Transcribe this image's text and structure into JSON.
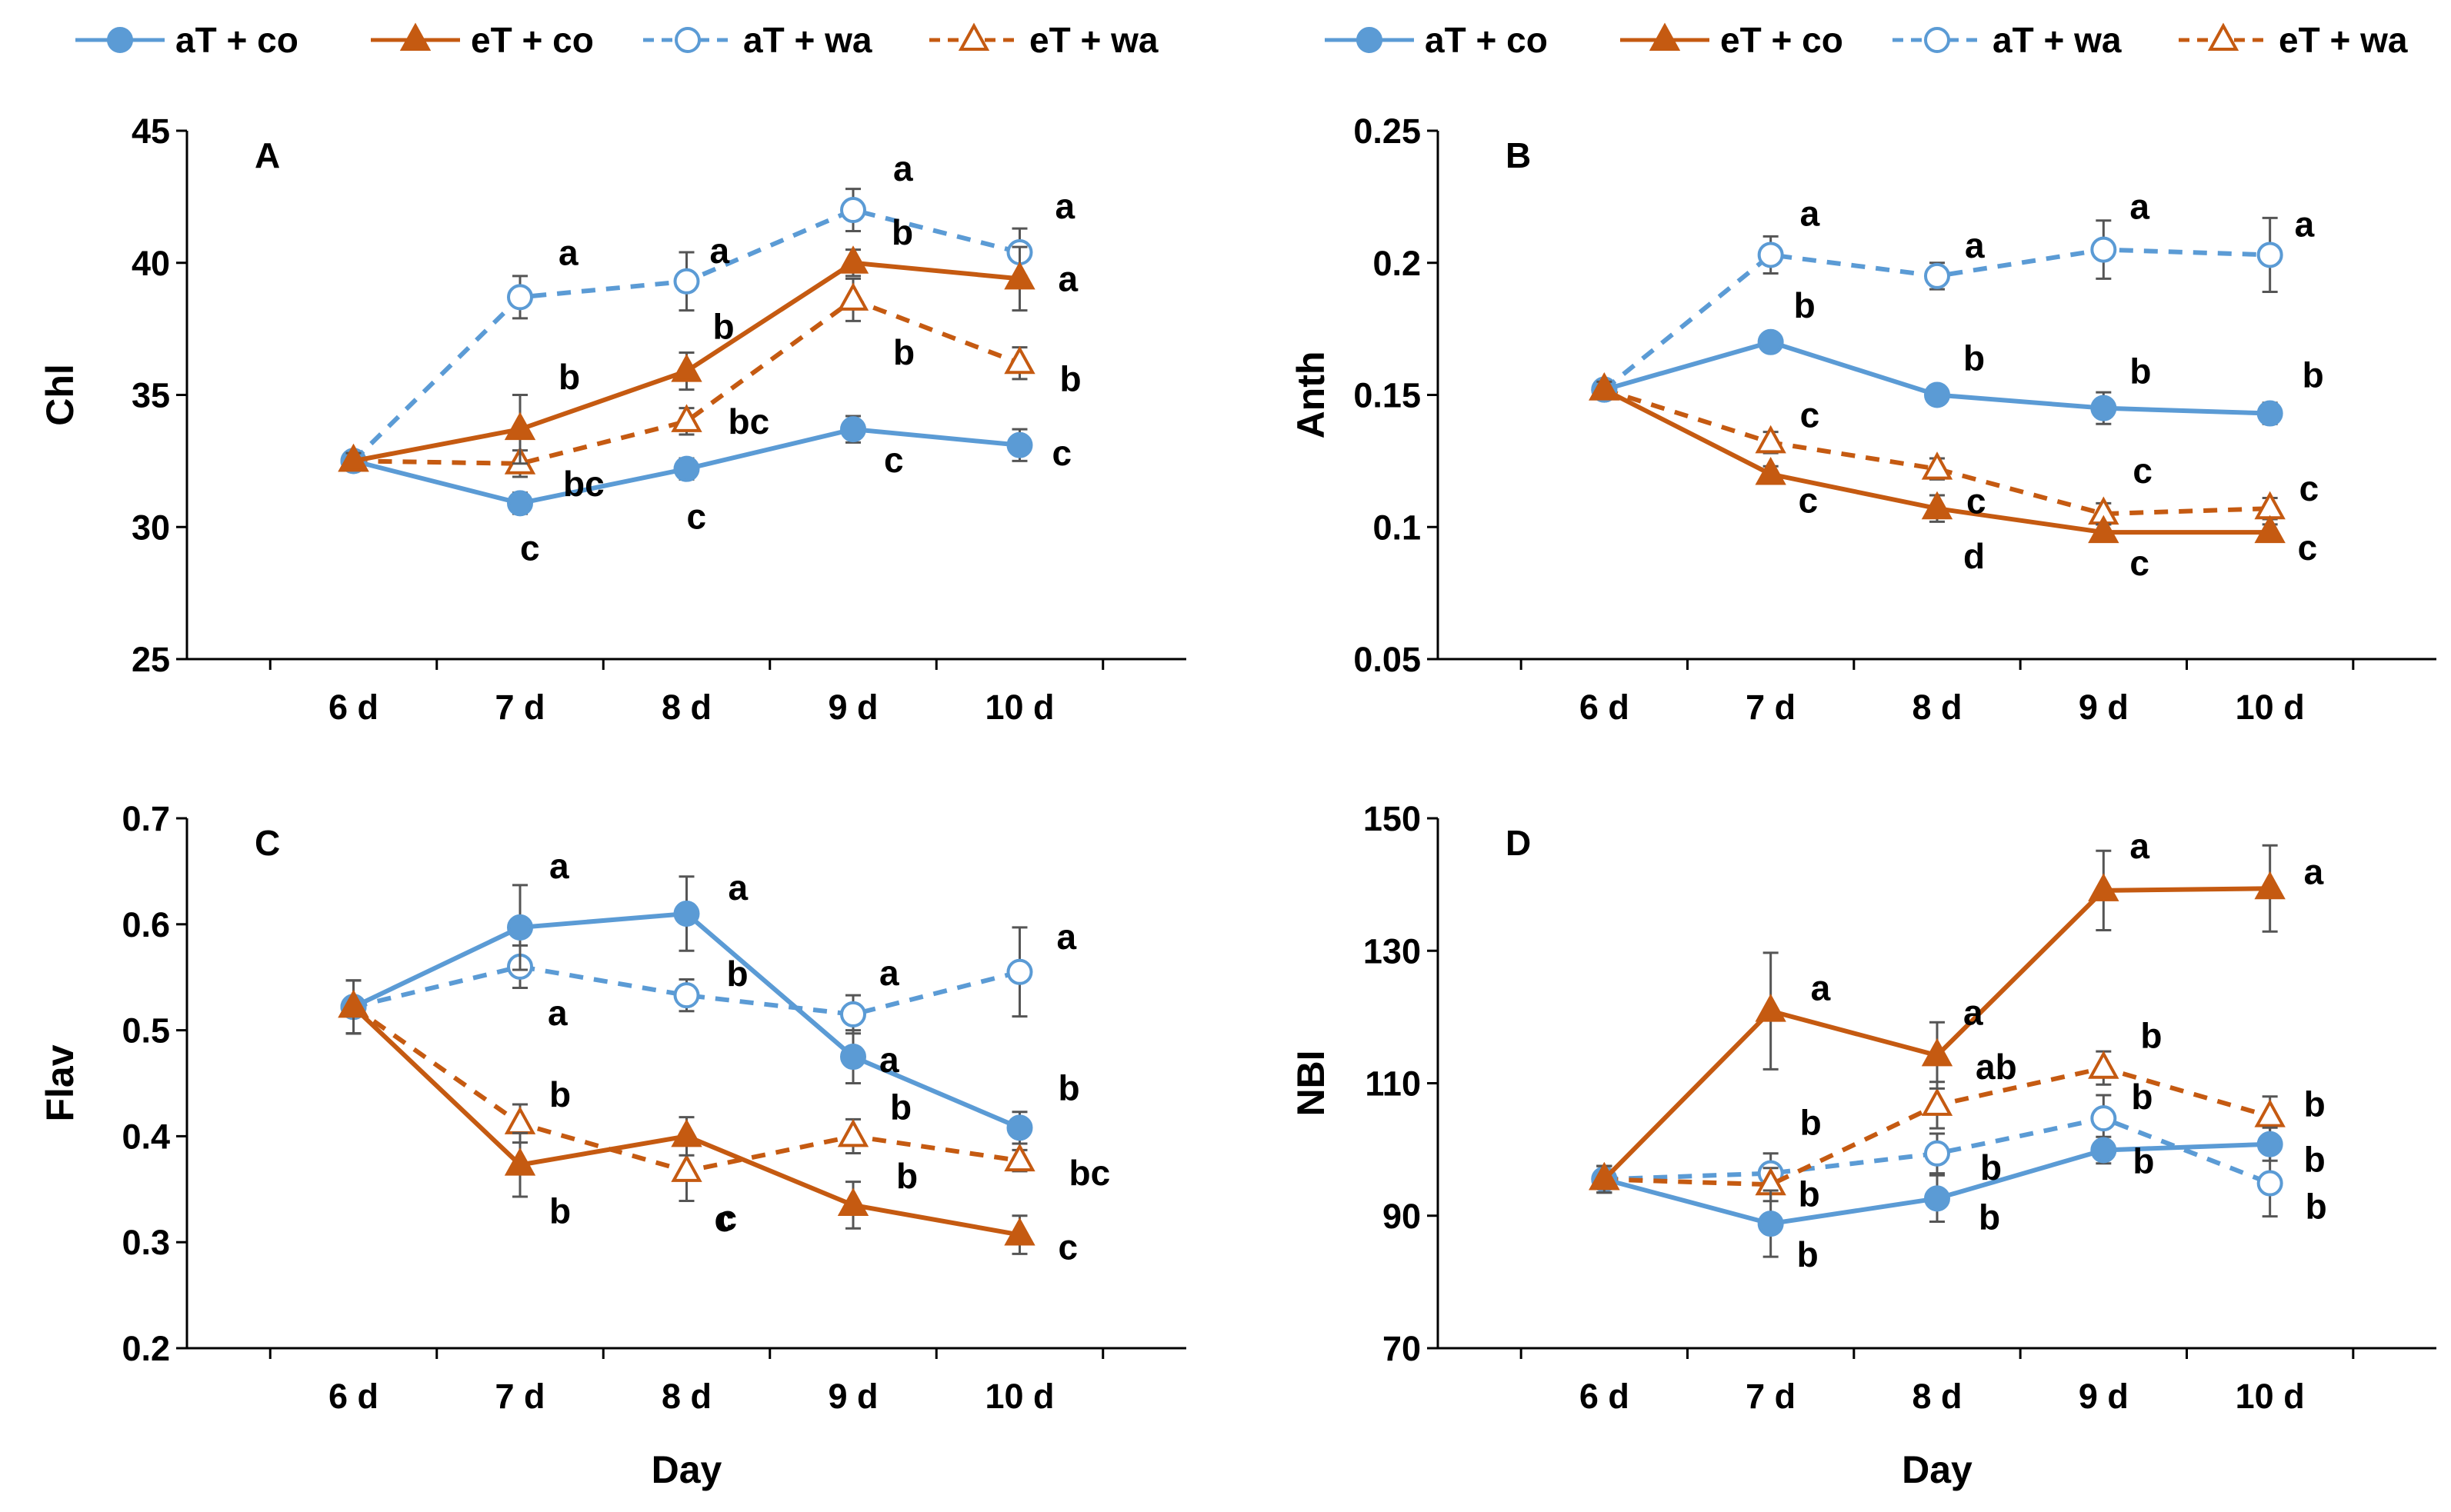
{
  "colors": {
    "blue": "#5B9BD5",
    "orange": "#C55A11",
    "axis": "#000000",
    "err": "#555555"
  },
  "legends": [
    {
      "items": [
        "aT + co",
        "eT + co",
        "aT + wa",
        "eT + wa"
      ]
    },
    {
      "items": [
        "aT + co",
        "eT + co",
        "aT + wa",
        "eT + wa"
      ]
    }
  ],
  "chart_data": [
    {
      "type": "line",
      "panel": "A",
      "categories": [
        "6 d",
        "7 d",
        "8 d",
        "9 d",
        "10 d"
      ],
      "xlabel": "",
      "ylabel": "Chl",
      "ylim": [
        25,
        45
      ],
      "yticks": [
        25,
        30,
        35,
        40,
        45
      ],
      "ytick_labels": [
        "25",
        "30",
        "35",
        "40",
        "45"
      ],
      "series": [
        {
          "name": "aT + co",
          "values": [
            32.5,
            30.9,
            32.2,
            33.7,
            33.1
          ],
          "errors": [
            0.3,
            0.4,
            0.4,
            0.5,
            0.6
          ],
          "letters": [
            "",
            "c",
            "c",
            "c",
            "c"
          ]
        },
        {
          "name": "eT + co",
          "values": [
            32.5,
            33.7,
            35.9,
            40.0,
            39.4
          ],
          "errors": [
            0.3,
            1.3,
            0.7,
            0.5,
            1.2
          ],
          "letters": [
            "",
            "b",
            "b",
            "b",
            "a"
          ]
        },
        {
          "name": "aT + wa",
          "values": [
            32.5,
            38.7,
            39.3,
            42.0,
            40.4
          ],
          "errors": [
            0.3,
            0.8,
            1.1,
            0.8,
            0.9
          ],
          "letters": [
            "",
            "a",
            "a",
            "a",
            "a"
          ]
        },
        {
          "name": "eT + wa",
          "values": [
            32.5,
            32.4,
            34.0,
            38.6,
            36.2
          ],
          "errors": [
            0.3,
            0.5,
            0.5,
            0.8,
            0.6
          ],
          "letters": [
            "",
            "bc",
            "bc",
            "b",
            "b"
          ]
        }
      ]
    },
    {
      "type": "line",
      "panel": "B",
      "categories": [
        "6 d",
        "7 d",
        "8 d",
        "9 d",
        "10 d"
      ],
      "xlabel": "",
      "ylabel": "Anth",
      "ylim": [
        0.05,
        0.25
      ],
      "yticks": [
        0.05,
        0.1,
        0.15,
        0.2,
        0.25
      ],
      "ytick_labels": [
        "0.05",
        "0.1",
        "0.15",
        "0.2",
        "0.25"
      ],
      "series": [
        {
          "name": "aT + co",
          "values": [
            0.152,
            0.17,
            0.15,
            0.145,
            0.143
          ],
          "errors": [
            0.003,
            0.003,
            0.003,
            0.006,
            0.004
          ],
          "letters": [
            "",
            "b",
            "b",
            "b",
            "b"
          ]
        },
        {
          "name": "eT + co",
          "values": [
            0.152,
            0.12,
            0.107,
            0.098,
            0.098
          ],
          "errors": [
            0.003,
            0.003,
            0.005,
            0.003,
            0.003
          ],
          "letters": [
            "",
            "c",
            "d",
            "c",
            "c"
          ]
        },
        {
          "name": "aT + wa",
          "values": [
            0.152,
            0.203,
            0.195,
            0.205,
            0.203
          ],
          "errors": [
            0.003,
            0.007,
            0.005,
            0.011,
            0.014
          ],
          "letters": [
            "",
            "a",
            "a",
            "a",
            "a"
          ]
        },
        {
          "name": "eT + wa",
          "values": [
            0.152,
            0.132,
            0.122,
            0.105,
            0.107
          ],
          "errors": [
            0.003,
            0.004,
            0.004,
            0.004,
            0.004
          ],
          "letters": [
            "",
            "c",
            "c",
            "c",
            "c"
          ]
        }
      ]
    },
    {
      "type": "line",
      "panel": "C",
      "categories": [
        "6 d",
        "7 d",
        "8 d",
        "9 d",
        "10 d"
      ],
      "xlabel": "Day",
      "ylabel": "Flav",
      "ylim": [
        0.2,
        0.7
      ],
      "yticks": [
        0.2,
        0.3,
        0.4,
        0.5,
        0.6,
        0.7
      ],
      "ytick_labels": [
        "0.2",
        "0.3",
        "0.4",
        "0.5",
        "0.6",
        "0.7"
      ],
      "series": [
        {
          "name": "aT + co",
          "values": [
            0.522,
            0.597,
            0.61,
            0.475,
            0.408
          ],
          "errors": [
            0.025,
            0.04,
            0.035,
            0.025,
            0.015
          ],
          "letters": [
            "",
            "a",
            "a",
            "a",
            "b"
          ]
        },
        {
          "name": "eT + co",
          "values": [
            0.522,
            0.373,
            0.4,
            0.335,
            0.307
          ],
          "errors": [
            0.025,
            0.03,
            0.018,
            0.022,
            0.018
          ],
          "letters": [
            "",
            "b",
            "c",
            "b",
            "c"
          ]
        },
        {
          "name": "aT + wa",
          "values": [
            0.522,
            0.56,
            0.533,
            0.515,
            0.555
          ],
          "errors": [
            0.025,
            0.02,
            0.015,
            0.018,
            0.042
          ],
          "letters": [
            "",
            "a",
            "b",
            "a",
            "a"
          ]
        },
        {
          "name": "eT + wa",
          "values": [
            0.522,
            0.412,
            0.367,
            0.4,
            0.377
          ],
          "errors": [
            0.025,
            0.018,
            0.028,
            0.016,
            0.01
          ],
          "letters": [
            "",
            "b",
            "c",
            "b",
            "bc"
          ]
        }
      ]
    },
    {
      "type": "line",
      "panel": "D",
      "categories": [
        "6 d",
        "7 d",
        "8 d",
        "9 d",
        "10 d"
      ],
      "xlabel": "Day",
      "ylabel": "NBI",
      "ylim": [
        70,
        150
      ],
      "yticks": [
        70,
        90,
        110,
        130,
        150
      ],
      "ytick_labels": [
        "70",
        "90",
        "110",
        "130",
        "150"
      ],
      "series": [
        {
          "name": "aT + co",
          "values": [
            95.5,
            88.8,
            92.6,
            99.9,
            100.8
          ],
          "errors": [
            2.0,
            5.0,
            3.5,
            2.0,
            2.5
          ],
          "letters": [
            "",
            "b",
            "b",
            "b",
            "b"
          ]
        },
        {
          "name": "eT + co",
          "values": [
            95.5,
            120.9,
            114.2,
            139.1,
            139.4
          ],
          "errors": [
            2.0,
            8.8,
            5.0,
            6.0,
            6.5
          ],
          "letters": [
            "",
            "a",
            "a",
            "a",
            "a"
          ]
        },
        {
          "name": "aT + wa",
          "values": [
            95.5,
            96.4,
            99.4,
            104.7,
            94.9
          ],
          "errors": [
            2.0,
            3.0,
            3.0,
            3.5,
            5.0
          ],
          "letters": [
            "",
            "b",
            "b",
            "b",
            "b"
          ]
        },
        {
          "name": "eT + wa",
          "values": [
            95.5,
            94.7,
            106.7,
            112.3,
            105.0
          ],
          "errors": [
            2.0,
            2.5,
            3.5,
            2.5,
            3.0
          ],
          "letters": [
            "",
            "b",
            "ab",
            "b",
            "b"
          ]
        }
      ]
    }
  ]
}
